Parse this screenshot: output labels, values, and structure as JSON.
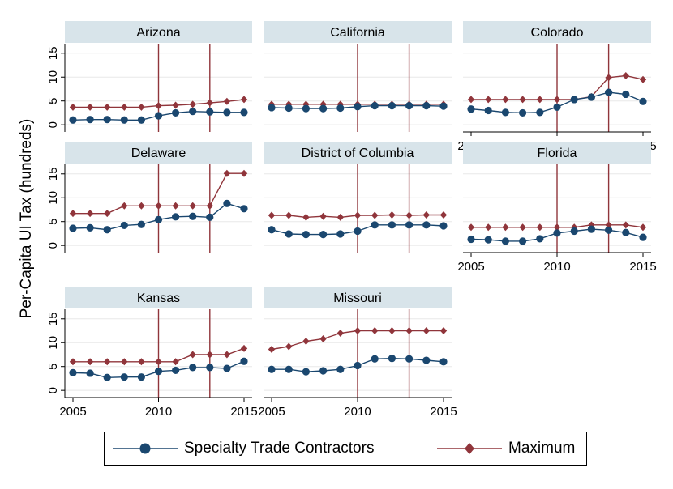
{
  "chart_data": {
    "type": "line",
    "ylabel": "Per-Capita UI Tax (hundreds)",
    "xlim": [
      2005,
      2015
    ],
    "ylim": [
      -1.5,
      17
    ],
    "x_ticks": [
      "2005",
      "2010",
      "2015"
    ],
    "y_ticks": [
      "0",
      "5",
      "10",
      "15"
    ],
    "vertical_reference_lines": [
      2010,
      2013
    ],
    "grid": "horizontal",
    "legend_position": "bottom",
    "colors": {
      "specialty": "#1a476f",
      "maximum": "#90353b",
      "strip": "#d8e4ea",
      "grid": "#e8e8e8"
    },
    "legend": [
      {
        "name": "Specialty Trade Contractors",
        "color": "#1a476f",
        "marker": "circle"
      },
      {
        "name": "Maximum",
        "color": "#90353b",
        "marker": "diamond"
      }
    ],
    "x": [
      2005,
      2006,
      2007,
      2008,
      2009,
      2010,
      2011,
      2012,
      2013,
      2014,
      2015
    ],
    "panels": [
      {
        "title": "Arizona",
        "series": [
          {
            "name": "Specialty Trade Contractors",
            "values": [
              1.0,
              1.1,
              1.1,
              1.0,
              1.0,
              1.9,
              2.5,
              2.8,
              2.7,
              2.6,
              2.6
            ]
          },
          {
            "name": "Maximum",
            "values": [
              3.7,
              3.7,
              3.7,
              3.7,
              3.7,
              4.0,
              4.1,
              4.3,
              4.6,
              4.9,
              5.3
            ]
          }
        ]
      },
      {
        "title": "California",
        "series": [
          {
            "name": "Specialty Trade Contractors",
            "values": [
              3.6,
              3.5,
              3.4,
              3.4,
              3.5,
              3.8,
              4.0,
              4.0,
              4.0,
              4.0,
              3.9
            ]
          },
          {
            "name": "Maximum",
            "values": [
              4.3,
              4.3,
              4.3,
              4.3,
              4.3,
              4.3,
              4.3,
              4.3,
              4.3,
              4.3,
              4.3
            ]
          }
        ]
      },
      {
        "title": "Colorado",
        "series": [
          {
            "name": "Specialty Trade Contractors",
            "values": [
              3.3,
              3.0,
              2.6,
              2.5,
              2.6,
              3.7,
              5.3,
              5.8,
              6.8,
              6.4,
              4.9
            ]
          },
          {
            "name": "Maximum",
            "values": [
              5.3,
              5.3,
              5.3,
              5.3,
              5.3,
              5.3,
              5.3,
              5.9,
              9.9,
              10.3,
              9.5
            ]
          }
        ]
      },
      {
        "title": "Delaware",
        "series": [
          {
            "name": "Specialty Trade Contractors",
            "values": [
              3.6,
              3.7,
              3.3,
              4.2,
              4.4,
              5.4,
              6.0,
              6.1,
              5.9,
              8.8,
              7.7
            ]
          },
          {
            "name": "Maximum",
            "values": [
              6.7,
              6.7,
              6.7,
              8.3,
              8.3,
              8.3,
              8.3,
              8.3,
              8.3,
              15.1,
              15.1
            ]
          }
        ]
      },
      {
        "title": "District of Columbia",
        "series": [
          {
            "name": "Specialty Trade Contractors",
            "values": [
              3.3,
              2.4,
              2.3,
              2.3,
              2.4,
              3.0,
              4.3,
              4.3,
              4.3,
              4.3,
              4.1
            ]
          },
          {
            "name": "Maximum",
            "values": [
              6.3,
              6.3,
              5.9,
              6.1,
              5.9,
              6.3,
              6.3,
              6.4,
              6.3,
              6.4,
              6.4
            ]
          }
        ]
      },
      {
        "title": "Florida",
        "series": [
          {
            "name": "Specialty Trade Contractors",
            "values": [
              1.3,
              1.2,
              0.9,
              0.9,
              1.4,
              2.6,
              3.0,
              3.4,
              3.2,
              2.7,
              1.7
            ]
          },
          {
            "name": "Maximum",
            "values": [
              3.8,
              3.8,
              3.8,
              3.8,
              3.8,
              3.8,
              3.8,
              4.3,
              4.3,
              4.3,
              3.8
            ]
          }
        ]
      },
      {
        "title": "Kansas",
        "series": [
          {
            "name": "Specialty Trade Contractors",
            "values": [
              3.7,
              3.6,
              2.7,
              2.8,
              2.8,
              4.0,
              4.2,
              4.8,
              4.8,
              4.6,
              6.1
            ]
          },
          {
            "name": "Maximum",
            "values": [
              6.0,
              6.0,
              6.0,
              6.0,
              6.0,
              6.0,
              6.0,
              7.5,
              7.5,
              7.5,
              8.8
            ]
          }
        ]
      },
      {
        "title": "Missouri",
        "series": [
          {
            "name": "Specialty Trade Contractors",
            "values": [
              4.4,
              4.4,
              3.9,
              4.1,
              4.4,
              5.2,
              6.6,
              6.7,
              6.6,
              6.3,
              6.0
            ]
          },
          {
            "name": "Maximum",
            "values": [
              8.6,
              9.2,
              10.3,
              10.8,
              12.0,
              12.5,
              12.5,
              12.5,
              12.5,
              12.5,
              12.5
            ]
          }
        ]
      }
    ]
  }
}
